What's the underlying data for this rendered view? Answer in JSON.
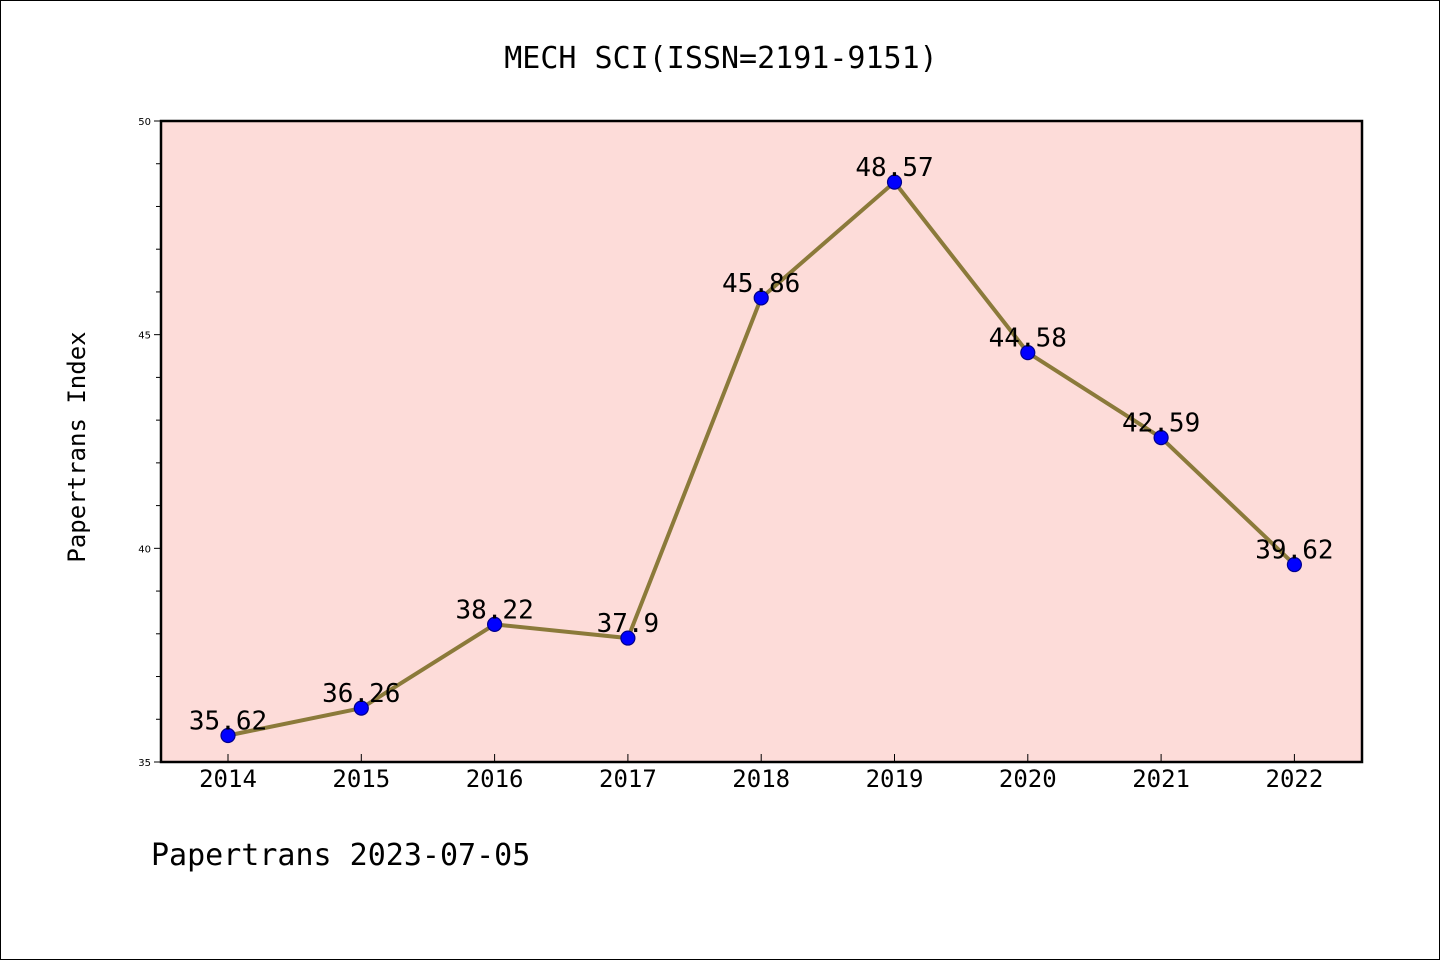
{
  "chart_data": {
    "type": "line",
    "title": "MECH SCI(ISSN=2191-9151)",
    "ylabel": "Papertrans Index",
    "xlabel": "",
    "categories": [
      "2014",
      "2015",
      "2016",
      "2017",
      "2018",
      "2019",
      "2020",
      "2021",
      "2022"
    ],
    "values": [
      35.62,
      36.26,
      38.22,
      37.9,
      45.86,
      48.57,
      44.58,
      42.59,
      39.62
    ],
    "data_labels": [
      "35.62",
      "36.26",
      "38.22",
      "37.9",
      "45.86",
      "48.57",
      "44.58",
      "42.59",
      "39.62"
    ],
    "ylim": [
      35,
      50
    ],
    "yticks": [
      35,
      40,
      45,
      50
    ],
    "ytick_labels": [
      "35",
      "40",
      "45",
      "50"
    ],
    "grid": false,
    "colors": {
      "plot_background": "#fddcd9",
      "line": "#8b7a3a",
      "marker": "#0000ff",
      "marker_edge": "#00008b"
    }
  },
  "footer": "Papertrans 2023-07-05"
}
